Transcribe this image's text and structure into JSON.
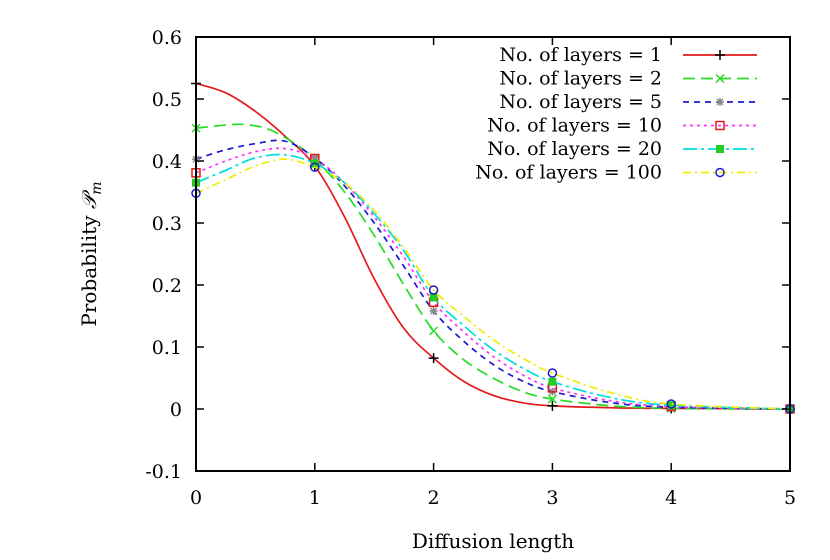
{
  "chart_data": {
    "type": "line",
    "title": "",
    "xlabel": "Diffusion length",
    "ylabel_text": "Probability ",
    "ylabel_symbol": "𝒫",
    "ylabel_subscript": "m",
    "xlim": [
      0,
      5
    ],
    "ylim": [
      -0.1,
      0.6
    ],
    "xticks": [
      "0",
      "1",
      "2",
      "3",
      "4",
      "5"
    ],
    "yticks": [
      "-0.1",
      "0",
      "0.1",
      "0.2",
      "0.3",
      "0.4",
      "0.5",
      "0.6"
    ],
    "xtick_values": [
      0,
      1,
      2,
      3,
      4,
      5
    ],
    "ytick_values": [
      -0.1,
      0,
      0.1,
      0.2,
      0.3,
      0.4,
      0.5,
      0.6
    ],
    "grid": false,
    "legend_position": "top-right",
    "series": [
      {
        "name": "No. of layers = 1",
        "color": "#e41a1c",
        "dash": "none",
        "marker": "plus",
        "curve": [
          [
            0,
            0.525
          ],
          [
            0.25,
            0.51
          ],
          [
            0.5,
            0.48
          ],
          [
            0.75,
            0.44
          ],
          [
            1,
            0.392
          ],
          [
            1.25,
            0.31
          ],
          [
            1.5,
            0.21
          ],
          [
            1.75,
            0.13
          ],
          [
            2,
            0.082
          ],
          [
            2.25,
            0.045
          ],
          [
            2.5,
            0.022
          ],
          [
            2.75,
            0.01
          ],
          [
            3,
            0.005
          ],
          [
            3.5,
            0.002
          ],
          [
            4,
            0.001
          ],
          [
            5,
            0
          ]
        ],
        "markers": [
          [
            0,
            0.525
          ],
          [
            1,
            0.392
          ],
          [
            2,
            0.082
          ],
          [
            3,
            0.005
          ],
          [
            4,
            0.001
          ],
          [
            5,
            0
          ]
        ]
      },
      {
        "name": "No. of layers = 2",
        "color": "#22dd22",
        "dash": "12,6",
        "marker": "cross",
        "curve": [
          [
            0,
            0.453
          ],
          [
            0.25,
            0.458
          ],
          [
            0.4,
            0.459
          ],
          [
            0.6,
            0.452
          ],
          [
            0.8,
            0.432
          ],
          [
            1,
            0.403
          ],
          [
            1.25,
            0.35
          ],
          [
            1.5,
            0.28
          ],
          [
            1.75,
            0.2
          ],
          [
            2,
            0.126
          ],
          [
            2.25,
            0.08
          ],
          [
            2.5,
            0.05
          ],
          [
            2.75,
            0.028
          ],
          [
            3,
            0.016
          ],
          [
            3.5,
            0.005
          ],
          [
            4,
            0.001
          ],
          [
            5,
            0
          ]
        ],
        "markers": [
          [
            0,
            0.453
          ],
          [
            1,
            0.403
          ],
          [
            2,
            0.126
          ],
          [
            3,
            0.016
          ],
          [
            4,
            0.001
          ],
          [
            5,
            0
          ]
        ]
      },
      {
        "name": "No. of layers = 5",
        "color": "#1a1acc",
        "dash": "6,5",
        "marker": "star",
        "curve": [
          [
            0,
            0.403
          ],
          [
            0.25,
            0.418
          ],
          [
            0.5,
            0.428
          ],
          [
            0.75,
            0.432
          ],
          [
            1,
            0.405
          ],
          [
            1.25,
            0.36
          ],
          [
            1.5,
            0.3
          ],
          [
            1.75,
            0.23
          ],
          [
            2,
            0.158
          ],
          [
            2.25,
            0.11
          ],
          [
            2.5,
            0.072
          ],
          [
            2.75,
            0.045
          ],
          [
            3,
            0.028
          ],
          [
            3.5,
            0.01
          ],
          [
            4,
            0.003
          ],
          [
            5,
            0
          ]
        ],
        "markers": [
          [
            0,
            0.403
          ],
          [
            1,
            0.405
          ],
          [
            2,
            0.158
          ],
          [
            3,
            0.028
          ],
          [
            4,
            0.003
          ],
          [
            5,
            0
          ]
        ]
      },
      {
        "name": "No. of layers = 10",
        "color": "#ff33ff",
        "dash": "3,4",
        "marker": "square",
        "curve": [
          [
            0,
            0.381
          ],
          [
            0.25,
            0.4
          ],
          [
            0.5,
            0.415
          ],
          [
            0.75,
            0.42
          ],
          [
            1,
            0.404
          ],
          [
            1.25,
            0.365
          ],
          [
            1.5,
            0.31
          ],
          [
            1.75,
            0.245
          ],
          [
            2,
            0.172
          ],
          [
            2.25,
            0.125
          ],
          [
            2.5,
            0.085
          ],
          [
            2.75,
            0.055
          ],
          [
            3,
            0.034
          ],
          [
            3.5,
            0.013
          ],
          [
            4,
            0.004
          ],
          [
            5,
            0
          ]
        ],
        "markers": [
          [
            0,
            0.381
          ],
          [
            1,
            0.404
          ],
          [
            2,
            0.172
          ],
          [
            3,
            0.034
          ],
          [
            4,
            0.004
          ],
          [
            5,
            0
          ]
        ]
      },
      {
        "name": "No. of layers = 20",
        "color": "#00dddd",
        "dash": "14,4,3,4",
        "marker": "filled-square",
        "curve": [
          [
            0,
            0.365
          ],
          [
            0.25,
            0.385
          ],
          [
            0.5,
            0.405
          ],
          [
            0.75,
            0.41
          ],
          [
            1,
            0.396
          ],
          [
            1.25,
            0.365
          ],
          [
            1.5,
            0.315
          ],
          [
            1.75,
            0.255
          ],
          [
            2,
            0.18
          ],
          [
            2.25,
            0.135
          ],
          [
            2.5,
            0.096
          ],
          [
            2.75,
            0.066
          ],
          [
            3,
            0.044
          ],
          [
            3.5,
            0.018
          ],
          [
            4,
            0.006
          ],
          [
            5,
            0
          ]
        ],
        "markers": [
          [
            0,
            0.365
          ],
          [
            1,
            0.396
          ],
          [
            2,
            0.18
          ],
          [
            3,
            0.044
          ],
          [
            4,
            0.006
          ],
          [
            5,
            0
          ]
        ]
      },
      {
        "name": "No. of layers = 100",
        "color": "#eeee00",
        "dash": "8,4,2,4",
        "marker": "circle",
        "curve": [
          [
            0,
            0.348
          ],
          [
            0.25,
            0.37
          ],
          [
            0.5,
            0.392
          ],
          [
            0.75,
            0.403
          ],
          [
            1,
            0.39
          ],
          [
            1.25,
            0.365
          ],
          [
            1.5,
            0.32
          ],
          [
            1.75,
            0.26
          ],
          [
            2,
            0.192
          ],
          [
            2.25,
            0.15
          ],
          [
            2.5,
            0.112
          ],
          [
            2.75,
            0.082
          ],
          [
            3,
            0.058
          ],
          [
            3.5,
            0.026
          ],
          [
            4,
            0.008
          ],
          [
            5,
            0
          ]
        ],
        "markers": [
          [
            0,
            0.348
          ],
          [
            1,
            0.39
          ],
          [
            2,
            0.192
          ],
          [
            3,
            0.058
          ],
          [
            4,
            0.008
          ],
          [
            5,
            0
          ]
        ]
      }
    ]
  }
}
